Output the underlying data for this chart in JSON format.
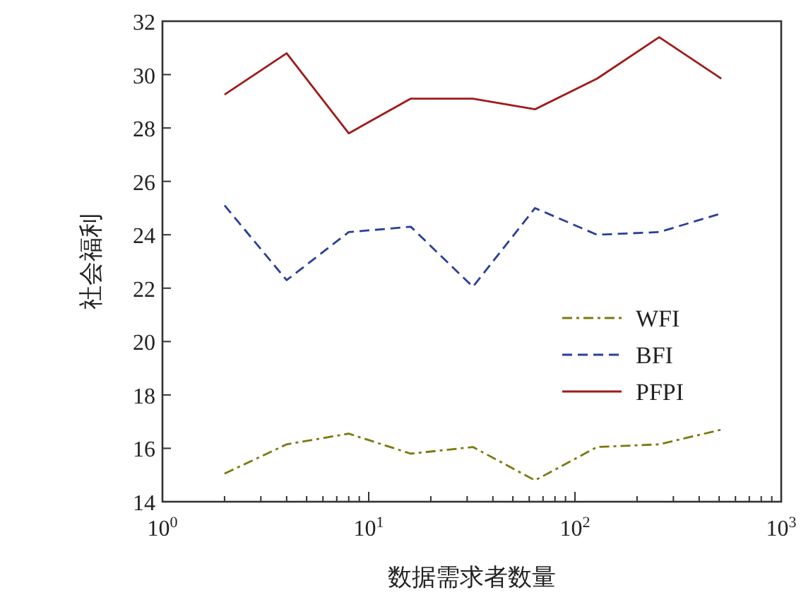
{
  "chart_data": {
    "type": "line",
    "xlabel": "数据需求者数量",
    "ylabel": "社会福利",
    "log": "x",
    "x": [
      2,
      4,
      8,
      16,
      32,
      64,
      128,
      256,
      512
    ],
    "xlim": [
      1,
      1000
    ],
    "xticks": [
      {
        "value": 1,
        "label": "10$^{0}$"
      },
      {
        "value": 2,
        "label": null
      },
      {
        "value": 3,
        "label": null
      },
      {
        "value": 4,
        "label": null
      },
      {
        "value": 5,
        "label": null
      },
      {
        "value": 6,
        "label": null
      },
      {
        "value": 7,
        "label": null
      },
      {
        "value": 8,
        "label": null
      },
      {
        "value": 9,
        "label": null
      },
      {
        "value": 10,
        "label": "10$^{1}$"
      },
      {
        "value": 20,
        "label": null
      },
      {
        "value": 30,
        "label": null
      },
      {
        "value": 40,
        "label": null
      },
      {
        "value": 50,
        "label": null
      },
      {
        "value": 60,
        "label": null
      },
      {
        "value": 70,
        "label": null
      },
      {
        "value": 80,
        "label": null
      },
      {
        "value": 90,
        "label": null
      },
      {
        "value": 100,
        "label": "10$^{2}$"
      },
      {
        "value": 200,
        "label": null
      },
      {
        "value": 300,
        "label": null
      },
      {
        "value": 400,
        "label": null
      },
      {
        "value": 500,
        "label": null
      },
      {
        "value": 600,
        "label": null
      },
      {
        "value": 700,
        "label": null
      },
      {
        "value": 800,
        "label": null
      },
      {
        "value": 900,
        "label": null
      },
      {
        "value": 1000,
        "label": "10$^{3}$"
      }
    ],
    "ylim": [
      14,
      32
    ],
    "yticks": [
      14,
      16,
      18,
      20,
      22,
      24,
      26,
      28,
      30,
      32
    ],
    "legend": "center right",
    "grid": false,
    "series": [
      {
        "name": "WFI",
        "color": "#7a7a10",
        "line_style": "dashdot",
        "values": [
          15.05,
          16.15,
          16.55,
          15.8,
          16.05,
          14.8,
          16.05,
          16.15,
          16.7
        ]
      },
      {
        "name": "BFI",
        "color": "#2a3f9a",
        "line_style": "dashed",
        "values": [
          25.1,
          22.3,
          24.1,
          24.3,
          22.05,
          25.0,
          24.0,
          24.1,
          24.8
        ]
      },
      {
        "name": "PFPI",
        "color": "#a01a1a",
        "line_style": "solid",
        "values": [
          29.25,
          30.8,
          27.8,
          29.1,
          29.1,
          28.7,
          29.85,
          31.4,
          29.85
        ]
      }
    ]
  }
}
